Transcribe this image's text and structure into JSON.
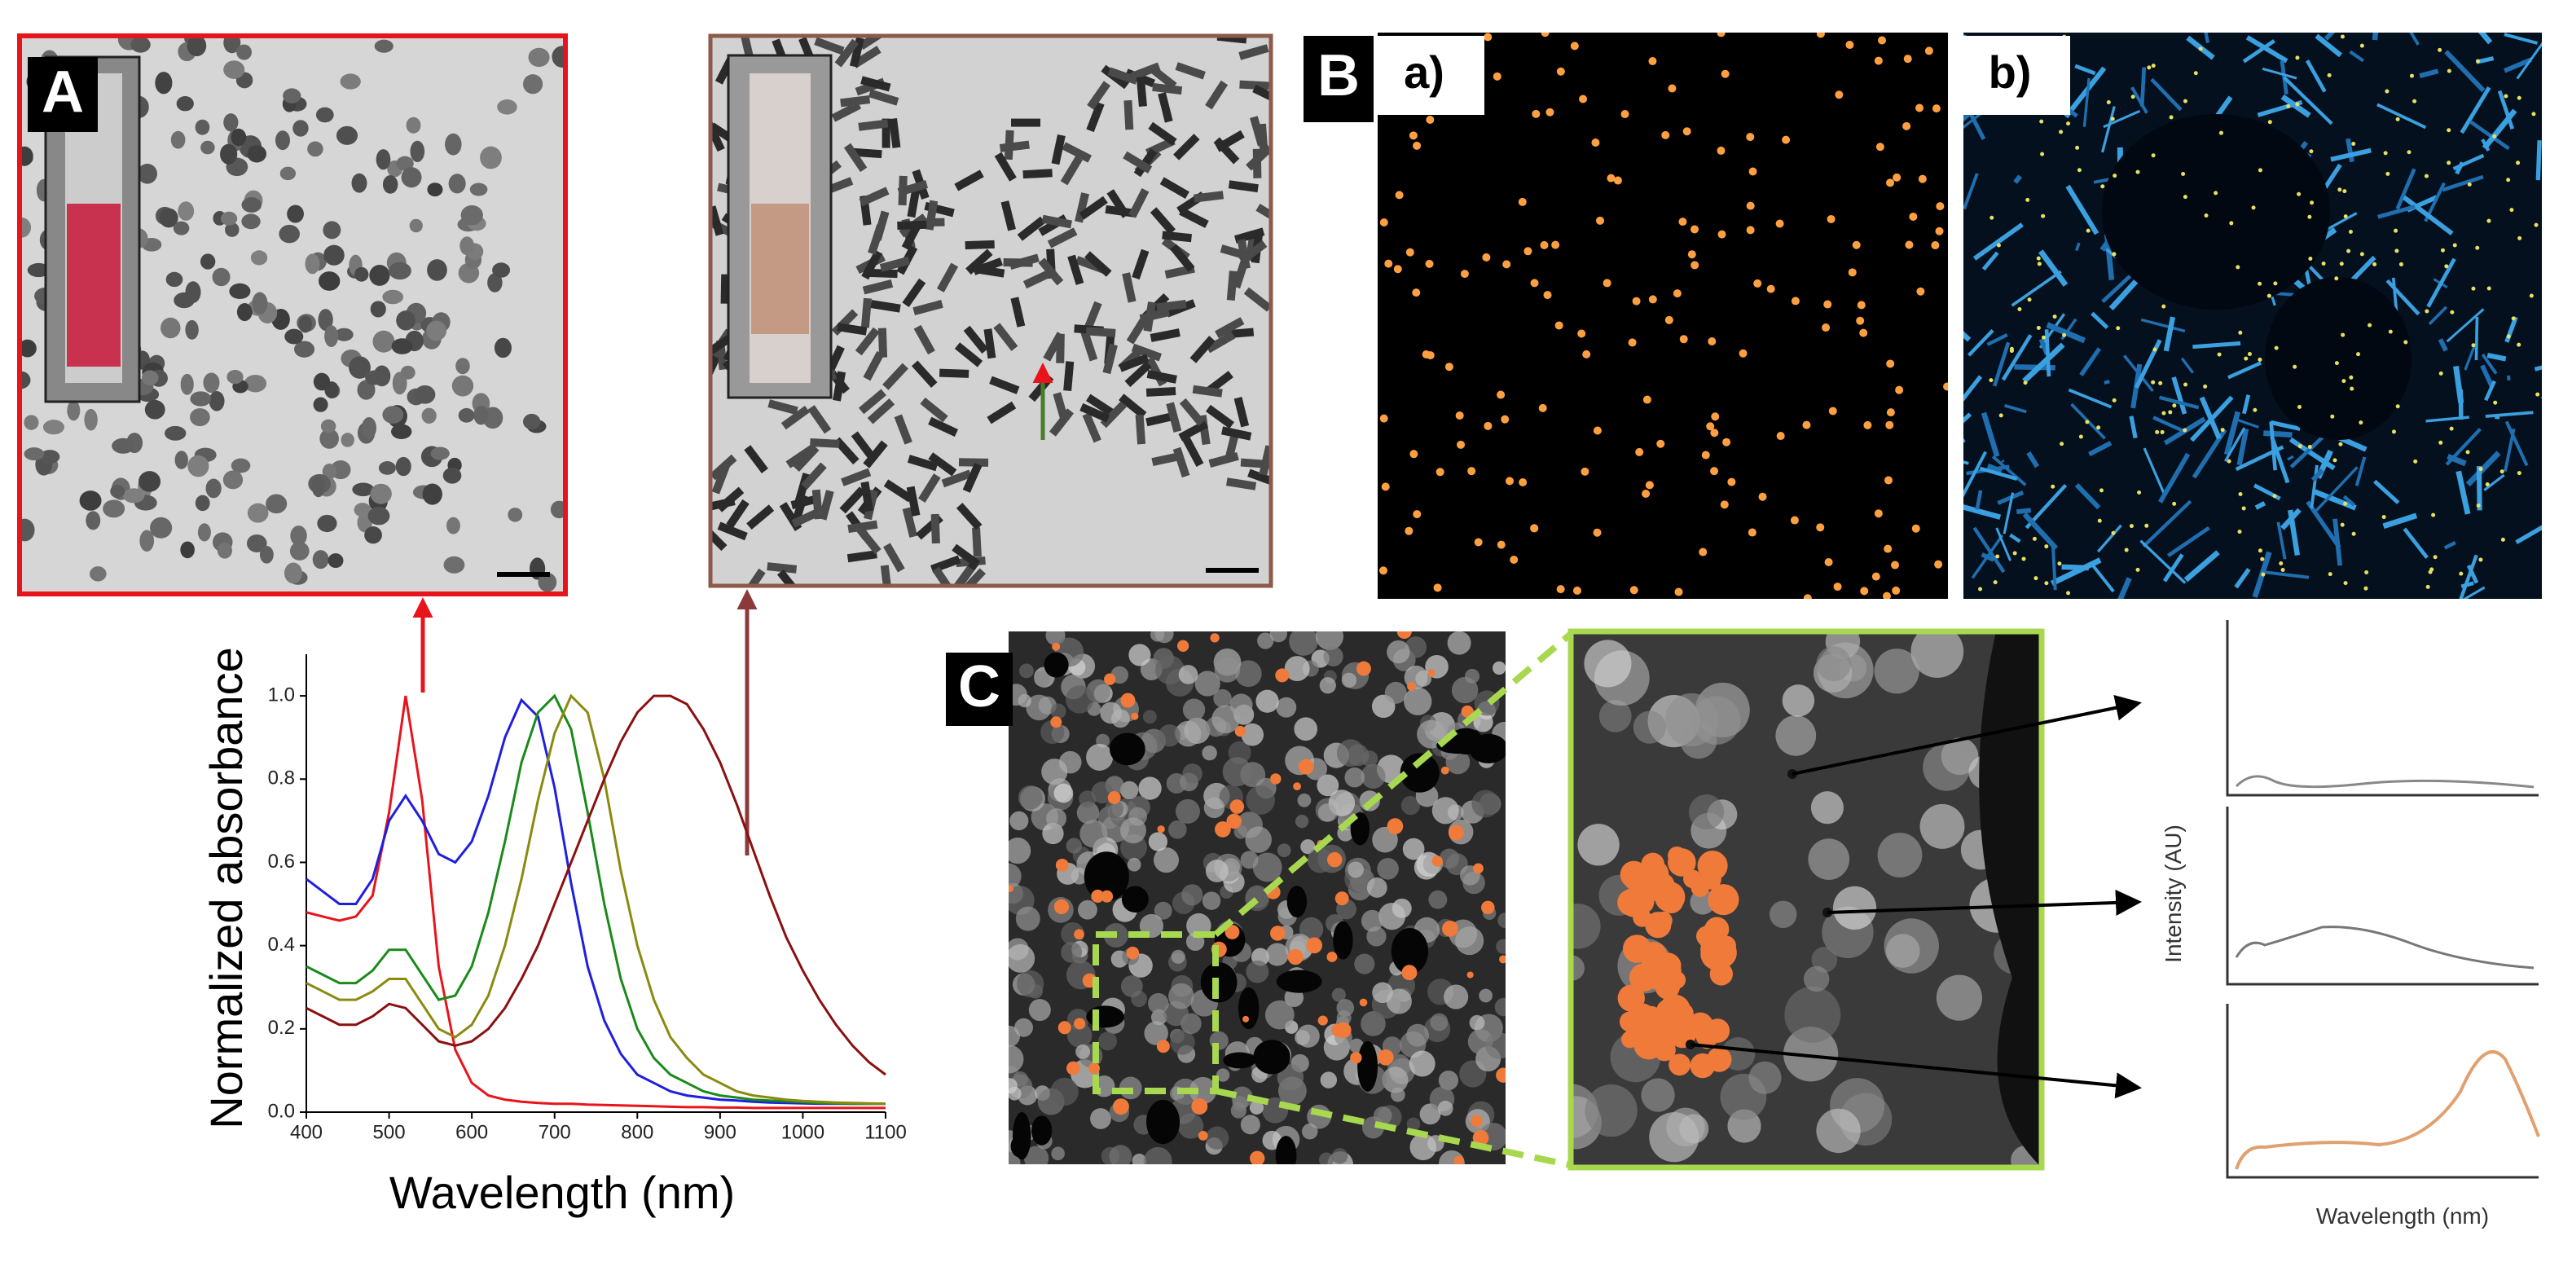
{
  "panel_labels": {
    "a": "A",
    "b": "B",
    "b_a": "a)",
    "b_b": "b)",
    "c": "C"
  },
  "spectra_axes": {
    "y": "Intensity (AU)",
    "x": "Wavelength (nm)"
  },
  "chart_data": {
    "type": "line",
    "x_label": "Wavelength (nm)",
    "y_label": "Normalized absorbance",
    "x": [
      400,
      420,
      440,
      460,
      480,
      500,
      520,
      540,
      560,
      580,
      600,
      620,
      640,
      660,
      680,
      700,
      720,
      740,
      760,
      780,
      800,
      820,
      840,
      860,
      880,
      900,
      920,
      940,
      960,
      980,
      1000,
      1020,
      1040,
      1060,
      1080,
      1100
    ],
    "series": [
      {
        "color": "#e8141b",
        "values": [
          0.48,
          0.47,
          0.46,
          0.47,
          0.52,
          0.72,
          1.0,
          0.75,
          0.35,
          0.15,
          0.07,
          0.04,
          0.03,
          0.025,
          0.022,
          0.02,
          0.02,
          0.018,
          0.017,
          0.016,
          0.015,
          0.014,
          0.013,
          0.012,
          0.012,
          0.011,
          0.011,
          0.01,
          0.01,
          0.01,
          0.01,
          0.01,
          0.01,
          0.01,
          0.01,
          0.01
        ]
      },
      {
        "color": "#1f1fe0",
        "values": [
          0.56,
          0.53,
          0.5,
          0.5,
          0.56,
          0.7,
          0.76,
          0.7,
          0.62,
          0.6,
          0.65,
          0.76,
          0.9,
          0.99,
          0.95,
          0.78,
          0.55,
          0.35,
          0.22,
          0.14,
          0.09,
          0.07,
          0.05,
          0.04,
          0.035,
          0.03,
          0.028,
          0.025,
          0.023,
          0.022,
          0.021,
          0.02,
          0.02,
          0.02,
          0.02,
          0.02
        ]
      },
      {
        "color": "#1a8a1a",
        "values": [
          0.35,
          0.33,
          0.31,
          0.31,
          0.34,
          0.39,
          0.39,
          0.33,
          0.27,
          0.28,
          0.35,
          0.48,
          0.65,
          0.84,
          0.96,
          1.0,
          0.92,
          0.72,
          0.5,
          0.32,
          0.2,
          0.13,
          0.09,
          0.07,
          0.05,
          0.04,
          0.035,
          0.03,
          0.028,
          0.026,
          0.024,
          0.022,
          0.021,
          0.02,
          0.02,
          0.02
        ]
      },
      {
        "color": "#8a8a10",
        "values": [
          0.31,
          0.29,
          0.27,
          0.27,
          0.29,
          0.32,
          0.32,
          0.26,
          0.2,
          0.18,
          0.21,
          0.28,
          0.4,
          0.56,
          0.75,
          0.91,
          1.0,
          0.96,
          0.8,
          0.58,
          0.4,
          0.27,
          0.18,
          0.13,
          0.09,
          0.07,
          0.05,
          0.04,
          0.035,
          0.03,
          0.027,
          0.025,
          0.023,
          0.022,
          0.021,
          0.02
        ]
      },
      {
        "color": "#8b1010",
        "values": [
          0.25,
          0.23,
          0.21,
          0.21,
          0.23,
          0.26,
          0.25,
          0.21,
          0.17,
          0.16,
          0.17,
          0.2,
          0.25,
          0.32,
          0.4,
          0.5,
          0.6,
          0.7,
          0.8,
          0.89,
          0.96,
          1.0,
          1.0,
          0.98,
          0.92,
          0.84,
          0.74,
          0.63,
          0.52,
          0.42,
          0.34,
          0.27,
          0.21,
          0.16,
          0.12,
          0.09
        ]
      }
    ],
    "xlim": [
      400,
      1100
    ],
    "ylim": [
      0,
      1.1
    ],
    "xticks": [
      400,
      500,
      600,
      700,
      800,
      900,
      1000,
      1100
    ],
    "yticks": [
      {
        "value": 0,
        "label": "0.0"
      },
      0.2,
      0.4,
      0.6,
      0.8,
      {
        "value": 1,
        "label": "1.0"
      }
    ]
  }
}
